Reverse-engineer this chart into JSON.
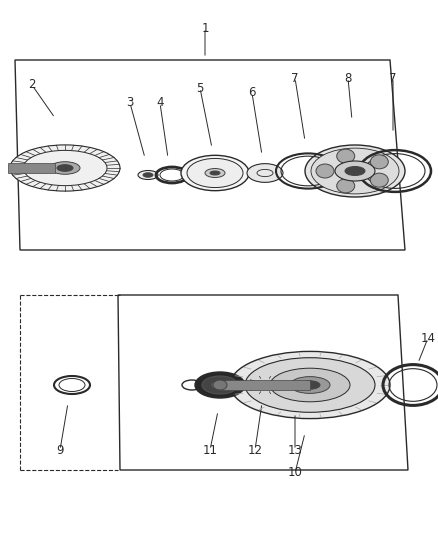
{
  "bg_color": "#ffffff",
  "lc": "#2a2a2a",
  "lg": "#cccccc",
  "mg": "#888888",
  "dg": "#444444",
  "vlg": "#f0f0f0",
  "fig_w": 4.38,
  "fig_h": 5.33,
  "dpi": 100
}
